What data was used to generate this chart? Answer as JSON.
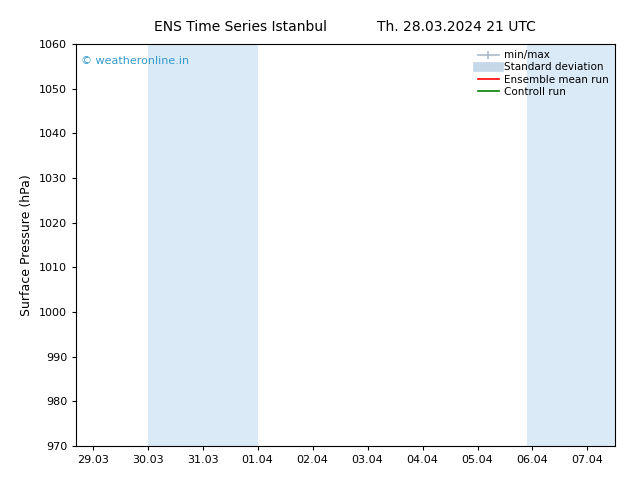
{
  "title1": "ENS Time Series Istanbul",
  "title2": "Th. 28.03.2024 21 UTC",
  "ylabel": "Surface Pressure (hPa)",
  "ylim": [
    970,
    1060
  ],
  "yticks": [
    970,
    980,
    990,
    1000,
    1010,
    1020,
    1030,
    1040,
    1050,
    1060
  ],
  "x_labels": [
    "29.03",
    "30.03",
    "31.03",
    "01.04",
    "02.04",
    "03.04",
    "04.04",
    "05.04",
    "06.04",
    "07.04"
  ],
  "x_positions": [
    0,
    1,
    2,
    3,
    4,
    5,
    6,
    7,
    8,
    9
  ],
  "xlim": [
    -0.3,
    9.5
  ],
  "shaded_bands": [
    {
      "x_start": 1.0,
      "x_end": 3.0,
      "color": "#daeaf7"
    },
    {
      "x_start": 7.9,
      "x_end": 9.5,
      "color": "#daeaf7"
    }
  ],
  "copyright_text": "© weatheronline.in",
  "copyright_color": "#3399cc",
  "bg_color": "#ffffff",
  "tick_label_fontsize": 8,
  "axis_label_fontsize": 9,
  "title_fontsize": 10
}
